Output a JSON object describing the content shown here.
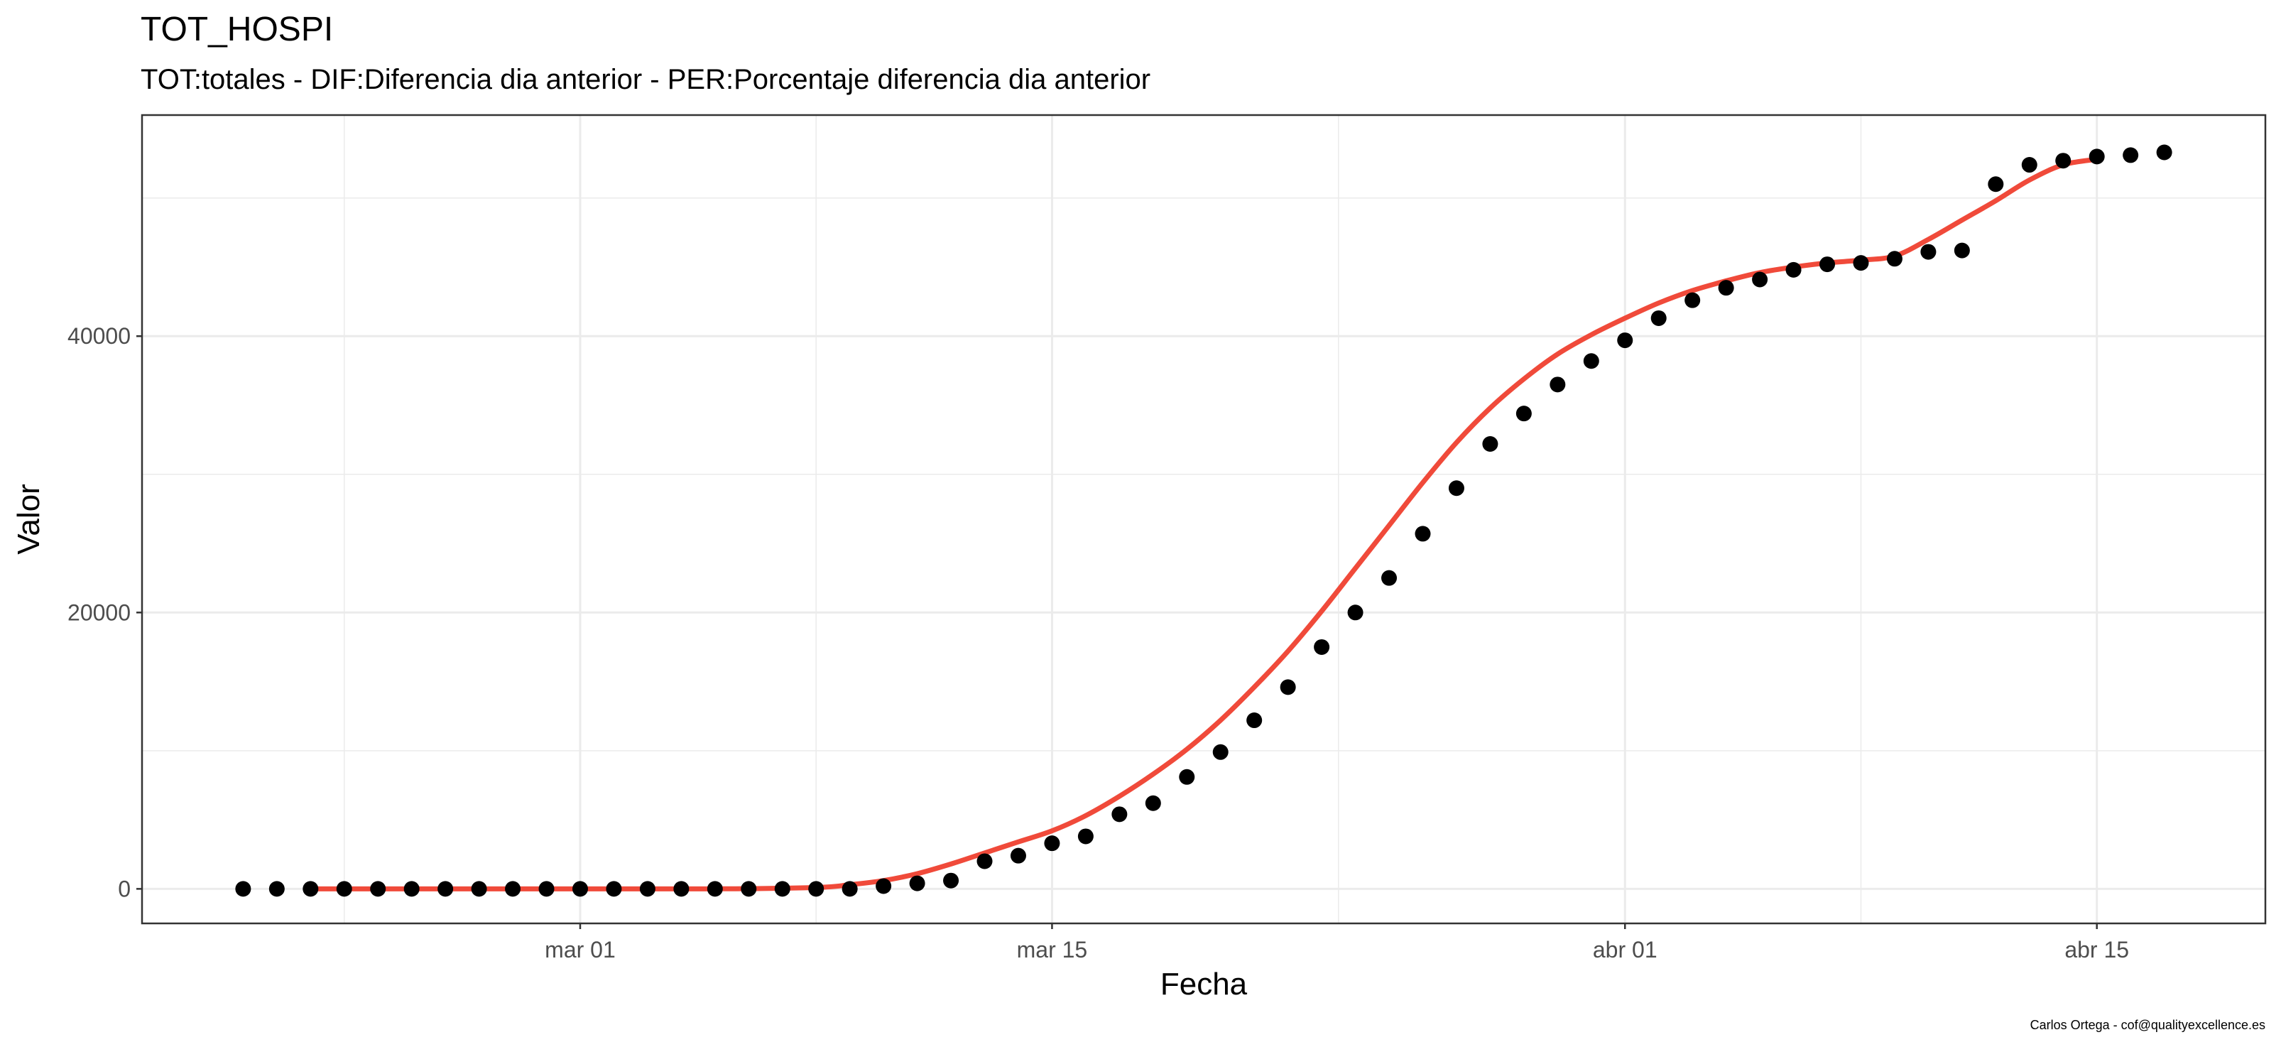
{
  "chart_data": {
    "type": "scatter",
    "title": "TOT_HOSPI",
    "subtitle": "TOT:totales - DIF:Diferencia dia anterior - PER:Porcentaje diferencia dia anterior",
    "xlabel": "Fecha",
    "ylabel": "Valor",
    "caption": "Carlos Ortega - cof@qualityexcellence.es",
    "x_ticks": [
      {
        "date": "2020-03-01",
        "label": "mar 01"
      },
      {
        "date": "2020-03-15",
        "label": "mar 15"
      },
      {
        "date": "2020-04-01",
        "label": "abr 01"
      },
      {
        "date": "2020-04-15",
        "label": "abr 15"
      }
    ],
    "y_ticks": [
      0,
      20000,
      40000
    ],
    "xlim": [
      "2020-02-17",
      "2020-04-20"
    ],
    "ylim": [
      -2500,
      56000
    ],
    "grid": true,
    "colors": {
      "points": "#000000",
      "smooth": "#f04a3a",
      "grid": "#ebebeb",
      "panel_border": "#333333"
    },
    "series": [
      {
        "type": "points",
        "x": [
          "2020-02-20",
          "2020-02-21",
          "2020-02-22",
          "2020-02-23",
          "2020-02-24",
          "2020-02-25",
          "2020-02-26",
          "2020-02-27",
          "2020-02-28",
          "2020-02-29",
          "2020-03-01",
          "2020-03-02",
          "2020-03-03",
          "2020-03-04",
          "2020-03-05",
          "2020-03-06",
          "2020-03-07",
          "2020-03-08",
          "2020-03-09",
          "2020-03-10",
          "2020-03-11",
          "2020-03-12",
          "2020-03-13",
          "2020-03-14",
          "2020-03-15",
          "2020-03-16",
          "2020-03-17",
          "2020-03-18",
          "2020-03-19",
          "2020-03-20",
          "2020-03-21",
          "2020-03-22",
          "2020-03-23",
          "2020-03-24",
          "2020-03-25",
          "2020-03-26",
          "2020-03-27",
          "2020-03-28",
          "2020-03-29",
          "2020-03-30",
          "2020-03-31",
          "2020-04-01",
          "2020-04-02",
          "2020-04-03",
          "2020-04-04",
          "2020-04-05",
          "2020-04-06",
          "2020-04-07",
          "2020-04-08",
          "2020-04-09",
          "2020-04-10",
          "2020-04-11",
          "2020-04-12",
          "2020-04-13",
          "2020-04-14",
          "2020-04-15",
          "2020-04-16",
          "2020-04-17"
        ],
        "y": [
          0,
          0,
          0,
          0,
          0,
          0,
          0,
          0,
          0,
          0,
          0,
          0,
          0,
          0,
          0,
          0,
          0,
          0,
          0,
          200,
          400,
          600,
          2000,
          2400,
          3300,
          3800,
          5400,
          6200,
          8100,
          9900,
          12200,
          14600,
          17500,
          20000,
          22500,
          25700,
          29000,
          32200,
          34400,
          36500,
          38200,
          39700,
          41300,
          42600,
          43500,
          44100,
          44800,
          45200,
          45300,
          45600,
          46100,
          46200,
          51000,
          52400,
          52700,
          53000,
          53100,
          53300
        ]
      },
      {
        "type": "smooth",
        "x": [
          "2020-02-22",
          "2020-02-25",
          "2020-03-01",
          "2020-03-05",
          "2020-03-08",
          "2020-03-09",
          "2020-03-10",
          "2020-03-11",
          "2020-03-12",
          "2020-03-13",
          "2020-03-14",
          "2020-03-15",
          "2020-03-16",
          "2020-03-17",
          "2020-03-18",
          "2020-03-19",
          "2020-03-20",
          "2020-03-21",
          "2020-03-22",
          "2020-03-23",
          "2020-03-24",
          "2020-03-25",
          "2020-03-26",
          "2020-03-27",
          "2020-03-28",
          "2020-03-29",
          "2020-03-30",
          "2020-03-31",
          "2020-04-01",
          "2020-04-02",
          "2020-04-03",
          "2020-04-04",
          "2020-04-05",
          "2020-04-06",
          "2020-04-07",
          "2020-04-08",
          "2020-04-09",
          "2020-04-10",
          "2020-04-11",
          "2020-04-12",
          "2020-04-13",
          "2020-04-14",
          "2020-04-15"
        ],
        "y": [
          0,
          0,
          0,
          0,
          100,
          300,
          600,
          1100,
          1800,
          2600,
          3400,
          4200,
          5300,
          6700,
          8300,
          10100,
          12200,
          14600,
          17200,
          20100,
          23200,
          26300,
          29400,
          32300,
          34800,
          36900,
          38700,
          40100,
          41300,
          42400,
          43300,
          44000,
          44600,
          45000,
          45300,
          45500,
          45800,
          47000,
          48400,
          49800,
          51300,
          52400,
          52800
        ]
      }
    ]
  }
}
